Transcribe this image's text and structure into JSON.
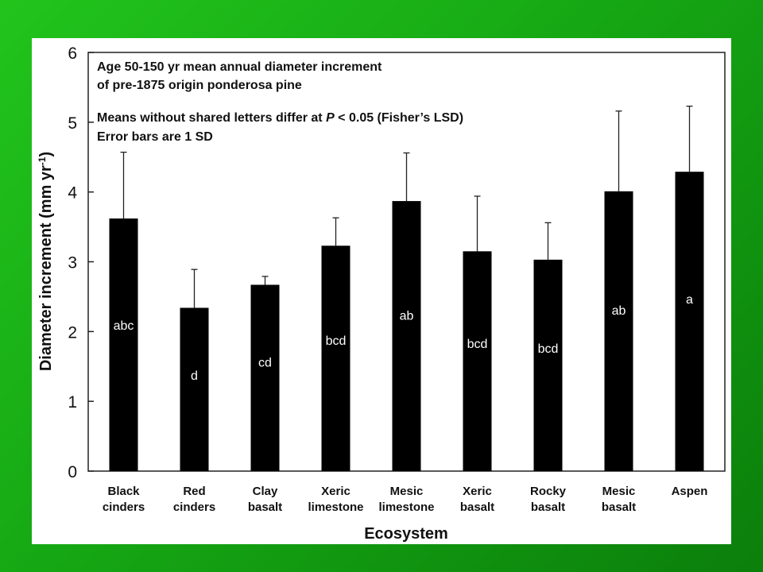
{
  "chart_data": {
    "type": "bar",
    "categories": [
      [
        "Black",
        "cinders"
      ],
      [
        "Red",
        "cinders"
      ],
      [
        "Clay",
        "basalt"
      ],
      [
        "Xeric",
        "limestone"
      ],
      [
        "Mesic",
        "limestone"
      ],
      [
        "Xeric",
        "basalt"
      ],
      [
        "Rocky",
        "basalt"
      ],
      [
        "Mesic",
        "basalt"
      ],
      [
        "Aspen"
      ]
    ],
    "values": [
      3.62,
      2.34,
      2.67,
      3.23,
      3.87,
      3.15,
      3.03,
      4.01,
      4.29
    ],
    "error_sd": [
      0.95,
      0.55,
      0.12,
      0.4,
      0.69,
      0.79,
      0.53,
      1.15,
      0.94
    ],
    "letters": [
      "abc",
      "d",
      "cd",
      "bcd",
      "ab",
      "bcd",
      "bcd",
      "ab",
      "a"
    ],
    "ylim": [
      0,
      6
    ],
    "yticks": [
      "0",
      "1",
      "2",
      "3",
      "4",
      "5",
      "6"
    ],
    "xlabel": "Ecosystem",
    "ylabel_main": "Diameter increment (mm yr",
    "ylabel_sup": "-1",
    "ylabel_close": ")",
    "annotations": {
      "line1": "Age 50-150 yr mean annual diameter increment",
      "line2": "of pre-1875 origin ponderosa pine",
      "line3_pre": "Means without shared letters differ at ",
      "line3_italic": "P",
      "line3_post": " < 0.05 (Fisher’s LSD)",
      "line4": "Error bars are 1 SD"
    },
    "colors": {
      "bars": "#000000",
      "bar_text": "#ffffff",
      "background": "#ffffff"
    }
  }
}
